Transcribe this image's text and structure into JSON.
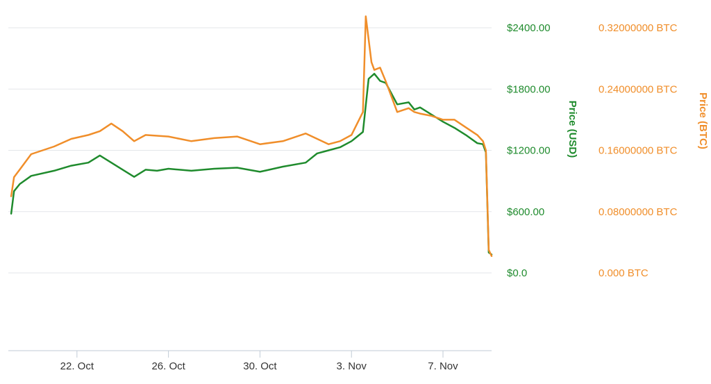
{
  "chart_data": {
    "type": "line",
    "title": "",
    "x_type": "datetime",
    "x_ticks": [
      "22. Oct",
      "26. Oct",
      "30. Oct",
      "3. Nov",
      "7. Nov"
    ],
    "x_tick_dates": [
      "2017-10-22",
      "2017-10-26",
      "2017-10-30",
      "2017-11-03",
      "2017-11-07"
    ],
    "xlim": [
      "2017-10-19",
      "2017-11-09T03:00"
    ],
    "grid": true,
    "legend": "none",
    "y_axes": [
      {
        "id": "usd",
        "label": "Price (USD)",
        "color": "#1f8b2d",
        "ylim": [
          0,
          2400
        ],
        "ticks": [
          "$0.0",
          "$600.00",
          "$1200.00",
          "$1800.00",
          "$2400.00"
        ],
        "tick_values": [
          0,
          600,
          1200,
          1800,
          2400
        ]
      },
      {
        "id": "btc",
        "label": "Price (BTC)",
        "color": "#f08e2a",
        "ylim": [
          0,
          0.32
        ],
        "ticks": [
          "0.000 BTC",
          "0.08000000 BTC",
          "0.16000000 BTC",
          "0.24000000 BTC",
          "0.32000000 BTC"
        ],
        "tick_values": [
          0,
          0.08,
          0.16,
          0.24,
          0.32
        ]
      }
    ],
    "series": [
      {
        "axis": "usd",
        "color": "#1f8b2d",
        "x": [
          "2017-10-19T03:00",
          "2017-10-19T06:00",
          "2017-10-19T12:00",
          "2017-10-20",
          "2017-10-21",
          "2017-10-21T18:00",
          "2017-10-22T12:00",
          "2017-10-23",
          "2017-10-24",
          "2017-10-24T12:00",
          "2017-10-25",
          "2017-10-25T12:00",
          "2017-10-26",
          "2017-10-27",
          "2017-10-28",
          "2017-10-29",
          "2017-10-30",
          "2017-10-31",
          "2017-11-01",
          "2017-11-01T12:00",
          "2017-11-02",
          "2017-11-02T12:00",
          "2017-11-03",
          "2017-11-03T12:00",
          "2017-11-03T18:00",
          "2017-11-04",
          "2017-11-04T06:00",
          "2017-11-04T12:00",
          "2017-11-05",
          "2017-11-05T12:00",
          "2017-11-05T18:00",
          "2017-11-06",
          "2017-11-06T12:00",
          "2017-11-07",
          "2017-11-07T12:00",
          "2017-11-08",
          "2017-11-08T12:00",
          "2017-11-08T18:00",
          "2017-11-08T21:00",
          "2017-11-09",
          "2017-11-09T03:00"
        ],
        "values": [
          580,
          800,
          870,
          950,
          1000,
          1050,
          1080,
          1150,
          1010,
          940,
          1010,
          1000,
          1020,
          1000,
          1020,
          1030,
          990,
          1040,
          1080,
          1170,
          1200,
          1230,
          1290,
          1380,
          1900,
          1950,
          1880,
          1860,
          1650,
          1670,
          1600,
          1620,
          1550,
          1480,
          1420,
          1350,
          1270,
          1260,
          1180,
          200,
          180
        ]
      },
      {
        "axis": "btc",
        "color": "#f08e2a",
        "x": [
          "2017-10-19T03:00",
          "2017-10-19T06:00",
          "2017-10-19T12:00",
          "2017-10-20",
          "2017-10-21",
          "2017-10-21T18:00",
          "2017-10-22T12:00",
          "2017-10-23",
          "2017-10-23T12:00",
          "2017-10-24",
          "2017-10-24T12:00",
          "2017-10-25",
          "2017-10-26",
          "2017-10-27",
          "2017-10-28",
          "2017-10-29",
          "2017-10-30",
          "2017-10-31",
          "2017-11-01",
          "2017-11-01T12:00",
          "2017-11-02",
          "2017-11-02T12:00",
          "2017-11-03",
          "2017-11-03T12:00",
          "2017-11-03T15:00",
          "2017-11-03T21:00",
          "2017-11-04",
          "2017-11-04T06:00",
          "2017-11-04T12:00",
          "2017-11-05",
          "2017-11-05T12:00",
          "2017-11-05T18:00",
          "2017-11-06",
          "2017-11-06T12:00",
          "2017-11-07",
          "2017-11-07T12:00",
          "2017-11-08",
          "2017-11-08T12:00",
          "2017-11-08T18:00",
          "2017-11-08T21:00",
          "2017-11-09",
          "2017-11-09T03:00"
        ],
        "values": [
          0.1,
          0.125,
          0.135,
          0.155,
          0.165,
          0.175,
          0.18,
          0.185,
          0.195,
          0.185,
          0.172,
          0.18,
          0.178,
          0.172,
          0.176,
          0.178,
          0.168,
          0.172,
          0.182,
          0.175,
          0.168,
          0.172,
          0.18,
          0.21,
          0.335,
          0.275,
          0.265,
          0.268,
          0.25,
          0.21,
          0.215,
          0.21,
          0.208,
          0.205,
          0.2,
          0.2,
          0.19,
          0.18,
          0.172,
          0.16,
          0.03,
          0.022
        ]
      }
    ]
  }
}
